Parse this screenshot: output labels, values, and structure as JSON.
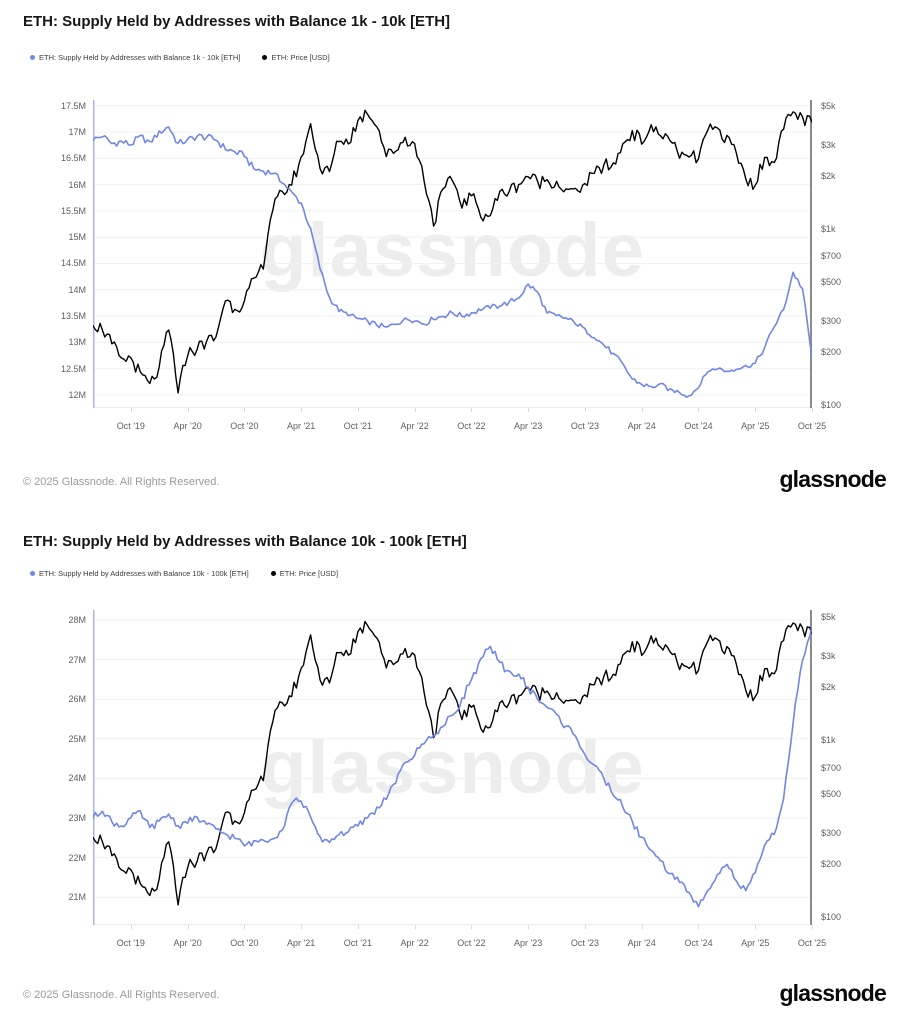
{
  "colors": {
    "supply": "#7186e6",
    "price": "#000000",
    "grid": "#f1f1f1",
    "left_axis_line": "#a9b3f0",
    "right_axis_line": "#8a8a8a",
    "plot_bottom_line": "#ececec",
    "watermark": "#ededed"
  },
  "watermark": "glassnode",
  "footer": {
    "copyright": "© 2025 Glassnode. All Rights Reserved.",
    "brand": "glassnode"
  },
  "chart_data": [
    {
      "type": "line",
      "title": "ETH: Supply Held by Addresses with Balance 1k - 10k [ETH]",
      "watermark": "glassnode",
      "x": [
        "2019-06",
        "2019-07",
        "2019-08",
        "2019-09",
        "2019-10",
        "2019-11",
        "2019-12",
        "2020-01",
        "2020-02",
        "2020-03",
        "2020-04",
        "2020-05",
        "2020-06",
        "2020-07",
        "2020-08",
        "2020-09",
        "2020-10",
        "2020-11",
        "2020-12",
        "2021-01",
        "2021-02",
        "2021-03",
        "2021-04",
        "2021-05",
        "2021-06",
        "2021-07",
        "2021-08",
        "2021-09",
        "2021-10",
        "2021-11",
        "2021-12",
        "2022-01",
        "2022-02",
        "2022-03",
        "2022-04",
        "2022-05",
        "2022-06",
        "2022-07",
        "2022-08",
        "2022-09",
        "2022-10",
        "2022-11",
        "2022-12",
        "2023-01",
        "2023-02",
        "2023-03",
        "2023-04",
        "2023-05",
        "2023-06",
        "2023-07",
        "2023-08",
        "2023-09",
        "2023-10",
        "2023-11",
        "2023-12",
        "2024-01",
        "2024-02",
        "2024-03",
        "2024-04",
        "2024-05",
        "2024-06",
        "2024-07",
        "2024-08",
        "2024-09",
        "2024-10",
        "2024-11",
        "2024-12",
        "2025-01",
        "2025-02",
        "2025-03",
        "2025-04",
        "2025-05",
        "2025-06",
        "2025-07",
        "2025-08",
        "2025-09",
        "2025-10"
      ],
      "x_ticks": [
        {
          "i": 4,
          "label": "Oct '19"
        },
        {
          "i": 10,
          "label": "Apr '20"
        },
        {
          "i": 16,
          "label": "Oct '20"
        },
        {
          "i": 22,
          "label": "Apr '21"
        },
        {
          "i": 28,
          "label": "Oct '21"
        },
        {
          "i": 34,
          "label": "Apr '22"
        },
        {
          "i": 40,
          "label": "Oct '22"
        },
        {
          "i": 46,
          "label": "Apr '23"
        },
        {
          "i": 52,
          "label": "Oct '23"
        },
        {
          "i": 58,
          "label": "Apr '24"
        },
        {
          "i": 64,
          "label": "Oct '24"
        },
        {
          "i": 70,
          "label": "Apr '25"
        },
        {
          "i": 76,
          "label": "Oct '25"
        }
      ],
      "left_axis": {
        "unit": "M ETH",
        "scale": "linear",
        "domain": [
          11.75,
          17.61
        ],
        "ticks": [
          {
            "v": 17.5,
            "label": "17.5M"
          },
          {
            "v": 17,
            "label": "17M"
          },
          {
            "v": 16.5,
            "label": "16.5M"
          },
          {
            "v": 16,
            "label": "16M"
          },
          {
            "v": 15.5,
            "label": "15.5M"
          },
          {
            "v": 15,
            "label": "15M"
          },
          {
            "v": 14.5,
            "label": "14.5M"
          },
          {
            "v": 14,
            "label": "14M"
          },
          {
            "v": 13.5,
            "label": "13.5M"
          },
          {
            "v": 13,
            "label": "13M"
          },
          {
            "v": 12.5,
            "label": "12.5M"
          },
          {
            "v": 12,
            "label": "12M"
          }
        ]
      },
      "right_axis": {
        "unit": "USD",
        "scale": "log",
        "domain": [
          96,
          5400
        ],
        "ticks": [
          {
            "v": 5000,
            "label": "$5k"
          },
          {
            "v": 3000,
            "label": "$3k"
          },
          {
            "v": 2000,
            "label": "$2k"
          },
          {
            "v": 1000,
            "label": "$1k"
          },
          {
            "v": 700,
            "label": "$700"
          },
          {
            "v": 500,
            "label": "$500"
          },
          {
            "v": 300,
            "label": "$300"
          },
          {
            "v": 200,
            "label": "$200"
          },
          {
            "v": 100,
            "label": "$100"
          }
        ]
      },
      "series": [
        {
          "name": "ETH: Supply Held by Addresses with Balance 1k - 10k [ETH]",
          "axis": "left",
          "color_key": "supply",
          "unit": "M ETH",
          "values": [
            16.85,
            16.92,
            16.78,
            16.82,
            16.76,
            16.92,
            16.8,
            17.0,
            17.1,
            16.78,
            16.85,
            16.92,
            16.9,
            16.85,
            16.68,
            16.62,
            16.55,
            16.3,
            16.26,
            16.22,
            16.05,
            15.85,
            15.65,
            15.15,
            14.4,
            13.85,
            13.6,
            13.52,
            13.45,
            13.4,
            13.33,
            13.28,
            13.35,
            13.45,
            13.42,
            13.35,
            13.45,
            13.5,
            13.56,
            13.5,
            13.56,
            13.62,
            13.66,
            13.7,
            13.76,
            13.85,
            14.1,
            13.95,
            13.55,
            13.5,
            13.46,
            13.36,
            13.25,
            13.1,
            12.95,
            12.78,
            12.58,
            12.3,
            12.2,
            12.15,
            12.2,
            12.1,
            12.05,
            11.98,
            12.15,
            12.45,
            12.5,
            12.45,
            12.5,
            12.55,
            12.6,
            12.9,
            13.3,
            13.62,
            14.33,
            14.02,
            12.7
          ]
        },
        {
          "name": "ETH: Price [USD]",
          "axis": "right",
          "color_key": "price",
          "unit": "USD",
          "values": [
            290,
            270,
            220,
            180,
            185,
            150,
            130,
            160,
            265,
            115,
            195,
            210,
            230,
            240,
            395,
            355,
            385,
            510,
            610,
            1300,
            1600,
            1800,
            2500,
            3900,
            2200,
            2100,
            3200,
            3100,
            4100,
            4600,
            3900,
            2600,
            2800,
            3300,
            3000,
            1900,
            1050,
            1650,
            1900,
            1350,
            1550,
            1200,
            1200,
            1600,
            1650,
            1800,
            2000,
            1850,
            1900,
            1850,
            1650,
            1650,
            1800,
            2050,
            2300,
            2300,
            3000,
            3600,
            3100,
            3800,
            3400,
            3250,
            2500,
            2600,
            2500,
            3600,
            3700,
            3300,
            2700,
            1900,
            1800,
            2500,
            2450,
            3700,
            4600,
            4250,
            3950
          ]
        }
      ]
    },
    {
      "type": "line",
      "title": "ETH: Supply Held by Addresses with Balance 10k - 100k [ETH]",
      "watermark": "glassnode",
      "x": [
        "2019-06",
        "2019-07",
        "2019-08",
        "2019-09",
        "2019-10",
        "2019-11",
        "2019-12",
        "2020-01",
        "2020-02",
        "2020-03",
        "2020-04",
        "2020-05",
        "2020-06",
        "2020-07",
        "2020-08",
        "2020-09",
        "2020-10",
        "2020-11",
        "2020-12",
        "2021-01",
        "2021-02",
        "2021-03",
        "2021-04",
        "2021-05",
        "2021-06",
        "2021-07",
        "2021-08",
        "2021-09",
        "2021-10",
        "2021-11",
        "2021-12",
        "2022-01",
        "2022-02",
        "2022-03",
        "2022-04",
        "2022-05",
        "2022-06",
        "2022-07",
        "2022-08",
        "2022-09",
        "2022-10",
        "2022-11",
        "2022-12",
        "2023-01",
        "2023-02",
        "2023-03",
        "2023-04",
        "2023-05",
        "2023-06",
        "2023-07",
        "2023-08",
        "2023-09",
        "2023-10",
        "2023-11",
        "2023-12",
        "2024-01",
        "2024-02",
        "2024-03",
        "2024-04",
        "2024-05",
        "2024-06",
        "2024-07",
        "2024-08",
        "2024-09",
        "2024-10",
        "2024-11",
        "2024-12",
        "2025-01",
        "2025-02",
        "2025-03",
        "2025-04",
        "2025-05",
        "2025-06",
        "2025-07",
        "2025-08",
        "2025-09",
        "2025-10"
      ],
      "x_ticks": [
        {
          "i": 4,
          "label": "Oct '19"
        },
        {
          "i": 10,
          "label": "Apr '20"
        },
        {
          "i": 16,
          "label": "Oct '20"
        },
        {
          "i": 22,
          "label": "Apr '21"
        },
        {
          "i": 28,
          "label": "Oct '21"
        },
        {
          "i": 34,
          "label": "Apr '22"
        },
        {
          "i": 40,
          "label": "Oct '22"
        },
        {
          "i": 46,
          "label": "Apr '23"
        },
        {
          "i": 52,
          "label": "Oct '23"
        },
        {
          "i": 58,
          "label": "Apr '24"
        },
        {
          "i": 64,
          "label": "Oct '24"
        },
        {
          "i": 70,
          "label": "Apr '25"
        },
        {
          "i": 76,
          "label": "Oct '25"
        }
      ],
      "left_axis": {
        "unit": "M ETH",
        "scale": "linear",
        "domain": [
          20.3,
          28.25
        ],
        "ticks": [
          {
            "v": 28,
            "label": "28M"
          },
          {
            "v": 27,
            "label": "27M"
          },
          {
            "v": 26,
            "label": "26M"
          },
          {
            "v": 25,
            "label": "25M"
          },
          {
            "v": 24,
            "label": "24M"
          },
          {
            "v": 23,
            "label": "23M"
          },
          {
            "v": 22,
            "label": "22M"
          },
          {
            "v": 21,
            "label": "21M"
          }
        ]
      },
      "right_axis": {
        "unit": "USD",
        "scale": "log",
        "domain": [
          90,
          5480
        ],
        "ticks": [
          {
            "v": 5000,
            "label": "$5k"
          },
          {
            "v": 3000,
            "label": "$3k"
          },
          {
            "v": 2000,
            "label": "$2k"
          },
          {
            "v": 1000,
            "label": "$1k"
          },
          {
            "v": 700,
            "label": "$700"
          },
          {
            "v": 500,
            "label": "$500"
          },
          {
            "v": 300,
            "label": "$300"
          },
          {
            "v": 200,
            "label": "$200"
          },
          {
            "v": 100,
            "label": "$100"
          }
        ]
      },
      "series": [
        {
          "name": "ETH: Supply Held by Addresses with Balance 10k - 100k [ETH]",
          "axis": "left",
          "color_key": "supply",
          "unit": "M ETH",
          "values": [
            23.0,
            23.2,
            22.9,
            22.8,
            23.0,
            23.15,
            22.75,
            22.9,
            23.1,
            22.8,
            22.9,
            23.0,
            22.85,
            22.7,
            22.6,
            22.5,
            22.3,
            22.4,
            22.45,
            22.5,
            22.7,
            23.4,
            23.45,
            23.0,
            22.5,
            22.4,
            22.6,
            22.65,
            22.8,
            23.0,
            23.25,
            23.5,
            23.9,
            24.4,
            24.6,
            24.9,
            25.1,
            25.3,
            25.6,
            26.0,
            26.5,
            27.0,
            27.3,
            26.9,
            26.7,
            26.6,
            26.3,
            26.0,
            25.8,
            25.6,
            25.3,
            25.1,
            24.6,
            24.3,
            24.0,
            23.6,
            23.3,
            22.9,
            22.5,
            22.2,
            21.9,
            21.6,
            21.4,
            21.1,
            20.75,
            21.2,
            21.6,
            21.85,
            21.4,
            21.15,
            21.6,
            22.3,
            22.6,
            23.5,
            25.4,
            27.0,
            27.8
          ]
        },
        {
          "name": "ETH: Price [USD]",
          "axis": "right",
          "color_key": "price",
          "unit": "USD",
          "values": [
            290,
            270,
            220,
            180,
            185,
            150,
            130,
            160,
            265,
            115,
            195,
            210,
            230,
            240,
            395,
            355,
            385,
            510,
            610,
            1300,
            1600,
            1800,
            2500,
            3900,
            2200,
            2100,
            3200,
            3100,
            4100,
            4600,
            3900,
            2600,
            2800,
            3300,
            3000,
            1900,
            1050,
            1650,
            1900,
            1350,
            1550,
            1200,
            1200,
            1600,
            1650,
            1800,
            2000,
            1850,
            1900,
            1850,
            1650,
            1650,
            1800,
            2050,
            2300,
            2300,
            3000,
            3600,
            3100,
            3800,
            3400,
            3250,
            2500,
            2600,
            2500,
            3600,
            3700,
            3300,
            2700,
            1900,
            1800,
            2500,
            2450,
            3700,
            4600,
            4250,
            3950
          ]
        }
      ]
    }
  ]
}
